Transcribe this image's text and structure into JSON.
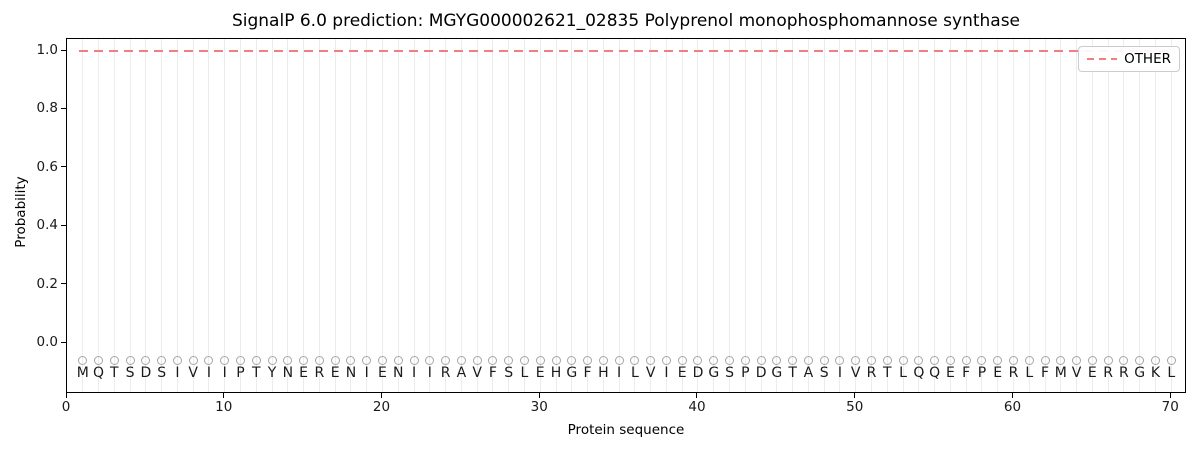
{
  "figure": {
    "title": "SignalP 6.0 prediction: MGYG000002621_02835 Polyprenol monophosphomannose synthase",
    "xlabel": "Protein sequence",
    "ylabel": "Probability"
  },
  "legend": {
    "position": "upper right",
    "entries": [
      {
        "label": "OTHER",
        "line_style": "dashed",
        "color": "#f08080"
      }
    ]
  },
  "chart_data": {
    "type": "line",
    "title": "SignalP 6.0 prediction: MGYG000002621_02835 Polyprenol monophosphomannose synthase",
    "xlabel": "Protein sequence",
    "ylabel": "Probability",
    "xlim": [
      0,
      71
    ],
    "ylim": [
      -0.17,
      1.04
    ],
    "x_ticks": [
      0,
      10,
      20,
      30,
      40,
      50,
      60,
      70
    ],
    "y_ticks": [
      0.0,
      0.2,
      0.4,
      0.6,
      0.8,
      1.0
    ],
    "grid": {
      "vertical_line_per_residue": true,
      "color": "#ececec"
    },
    "legend_position": "upper right",
    "series": [
      {
        "name": "OTHER",
        "style": "dashed",
        "color": "#f08080",
        "x": [
          1,
          70
        ],
        "y": [
          1.0,
          1.0
        ]
      }
    ],
    "sequence": "MQTSDSIVIIPTYNERENIENIIRAVFSLEHGFHILVIEDGSPDGTASIVRTLQQEFPERLFMVERRGKL",
    "sequence_markers": {
      "shape": "open-circle",
      "color": "#a6a6a6",
      "y": -0.05
    }
  },
  "colors": {
    "background": "#ffffff",
    "spine": "#000000",
    "grid": "#ececec",
    "other_line": "#f08080",
    "marker": "#a6a6a6",
    "text": "#1a1a1a"
  }
}
